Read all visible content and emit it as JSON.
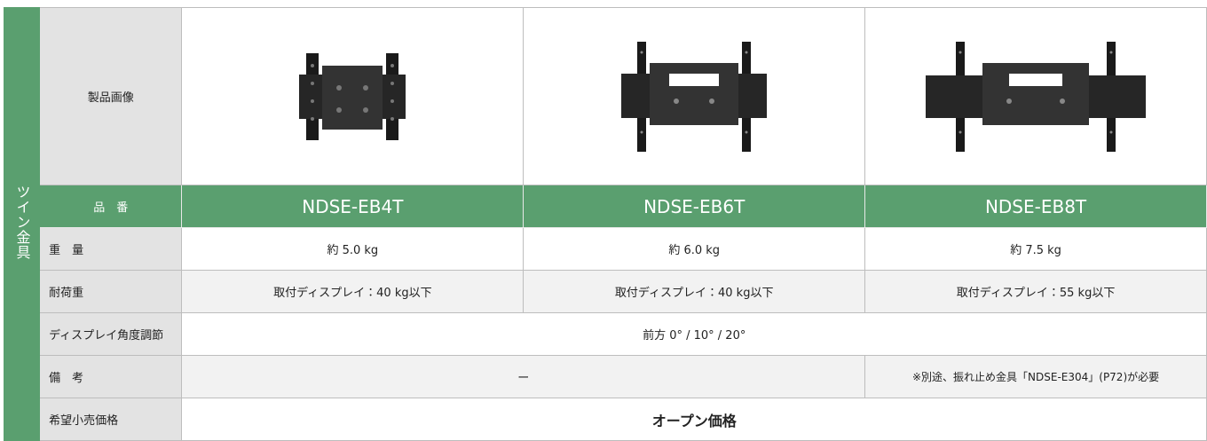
{
  "table": {
    "group": "ツイン金具",
    "image_label": "製品画像",
    "part_number": {
      "label": "品　番",
      "values": [
        "NDSE-EB4T",
        "NDSE-EB6T",
        "NDSE-EB8T"
      ]
    },
    "weight": {
      "label": "重　量",
      "values": [
        "約 5.0 kg",
        "約 6.0 kg",
        "約 7.5 kg"
      ]
    },
    "load": {
      "label": "耐荷重",
      "values": [
        "取付ディスプレイ：40 kg以下",
        "取付ディスプレイ：40 kg以下",
        "取付ディスプレイ：55 kg以下"
      ]
    },
    "angle": {
      "label": "ディスプレイ角度調節",
      "value": "前方 0° / 10° / 20°"
    },
    "note": {
      "label": "備　考",
      "values": [
        "ー",
        "※別途、振れ止め金具「NDSE-E304」(P72)が必要"
      ]
    },
    "price": {
      "label": "希望小売価格",
      "value": "オープン価格"
    }
  }
}
